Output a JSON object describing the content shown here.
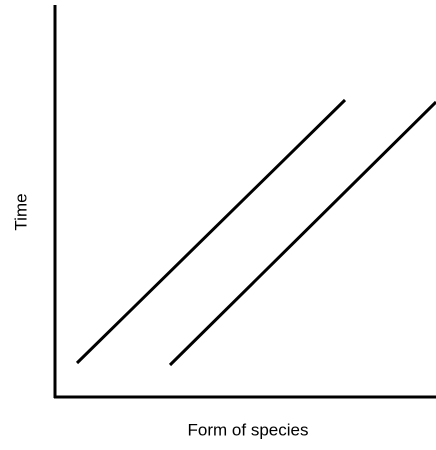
{
  "x_axis_label": "Form of species",
  "y_axis_label": "Time"
}
